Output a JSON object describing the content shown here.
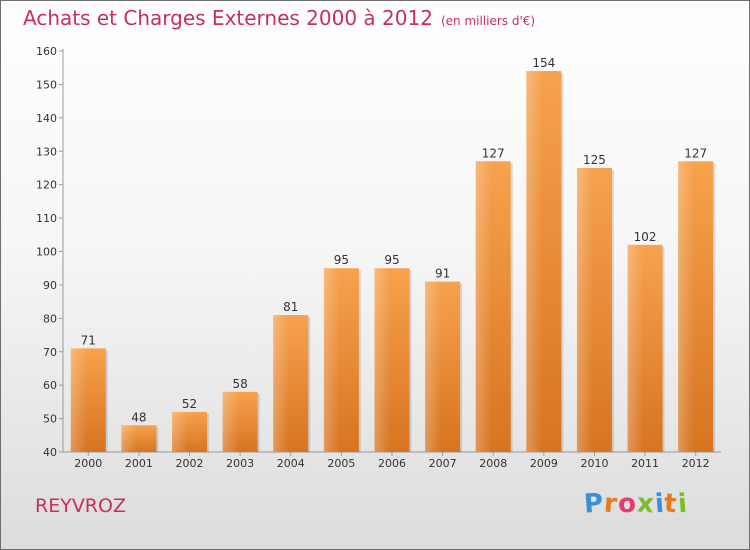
{
  "title": "Achats et Charges Externes 2000 à 2012",
  "unit": "(en milliers d'€)",
  "commune": "REYVROZ",
  "brand": "Proxiti",
  "brand_letter_colors": [
    "#3a8fd8",
    "#e87a1e",
    "#e83a6a",
    "#7abf2a",
    "#3a8fd8",
    "#e87a1e",
    "#7abf2a"
  ],
  "colors": {
    "accent": "#c8305a",
    "bar_top": "#f7a24e",
    "bar_bottom": "#d77420"
  },
  "chart_data": {
    "type": "bar",
    "title": "Achats et Charges Externes 2000 à 2012",
    "subtitle": "(en milliers d'€)",
    "xlabel": "",
    "ylabel": "",
    "categories": [
      "2000",
      "2001",
      "2002",
      "2003",
      "2004",
      "2005",
      "2006",
      "2007",
      "2008",
      "2009",
      "2010",
      "2011",
      "2012"
    ],
    "values": [
      71,
      48,
      52,
      58,
      81,
      95,
      95,
      91,
      127,
      154,
      125,
      102,
      127
    ],
    "ylim": [
      40,
      160
    ],
    "yticks": [
      40,
      50,
      60,
      70,
      80,
      90,
      100,
      110,
      120,
      130,
      140,
      150,
      160
    ],
    "grid": false,
    "legend": "none"
  }
}
